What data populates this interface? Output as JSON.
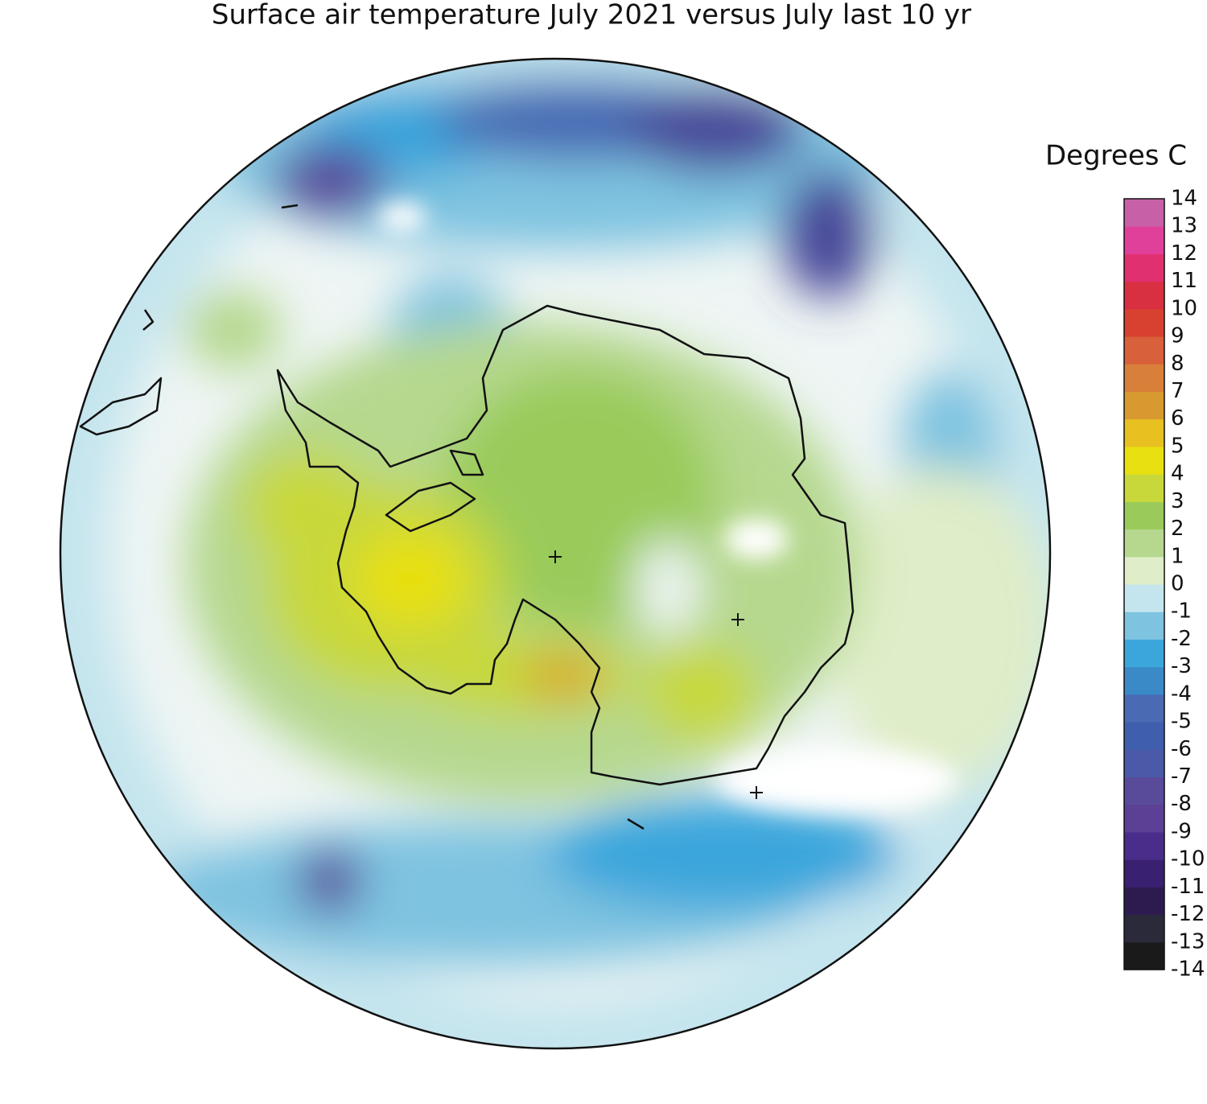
{
  "title": "Surface air temperature July 2021 versus July last 10 yr",
  "colorbar": {
    "label": "Degrees C",
    "ticks": [
      -14,
      -13,
      -12,
      -11,
      -10,
      -9,
      -8,
      -7,
      -6,
      -5,
      -4,
      -3,
      -2,
      -1,
      0,
      1,
      2,
      3,
      4,
      5,
      6,
      7,
      8,
      9,
      10,
      11,
      12,
      13,
      14
    ],
    "colors": [
      "#1a1a1a",
      "#2a2a3a",
      "#2d1b50",
      "#3a2070",
      "#4a2d8a",
      "#5b4095",
      "#5a4a9a",
      "#4a5aa8",
      "#3f5fae",
      "#4a6ab4",
      "#3a8ac8",
      "#3aa6dc",
      "#7ec3e0",
      "#c5e5ee",
      "#dfedc8",
      "#b5d88e",
      "#9acb5a",
      "#c8d83a",
      "#e8e010",
      "#e8c020",
      "#d89a30",
      "#d8803a",
      "#d8603a",
      "#d84030",
      "#d83040",
      "#e03070",
      "#e0409a",
      "#c860a8"
    ]
  }
}
